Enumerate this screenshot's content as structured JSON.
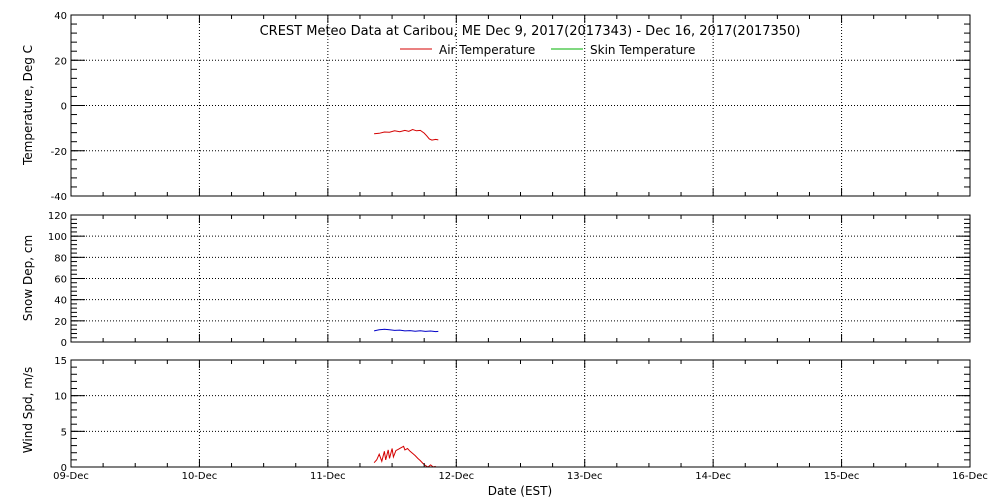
{
  "chart_data": {
    "type": "line",
    "title": "CREST Meteo Data at Caribou, ME   Dec  9, 2017(2017343) - Dec 16, 2017(2017350)",
    "xlabel": "Date (EST)",
    "x_ticks": [
      "09-Dec",
      "10-Dec",
      "11-Dec",
      "12-Dec",
      "13-Dec",
      "14-Dec",
      "15-Dec",
      "16-Dec"
    ],
    "xlim": [
      0,
      7
    ],
    "legend": [
      {
        "name": "Air Temperature",
        "color": "#d40000"
      },
      {
        "name": "Skin Temperature",
        "color": "#00b000"
      }
    ],
    "panels": [
      {
        "id": "temperature",
        "ylabel": "Temperature, Deg C",
        "ylim": [
          -40,
          40
        ],
        "y_ticks": [
          "40",
          "20",
          "0",
          "-20",
          "-40"
        ],
        "y_tick_values": [
          40,
          20,
          0,
          -20,
          -40
        ],
        "series": [
          {
            "name": "Air Temperature",
            "color": "#d40000",
            "x": [
              2.36,
              2.4,
              2.44,
              2.48,
              2.52,
              2.56,
              2.6,
              2.63,
              2.66,
              2.69,
              2.72,
              2.75,
              2.77,
              2.79,
              2.81,
              2.84,
              2.86
            ],
            "y": [
              -12.5,
              -12.3,
              -11.7,
              -11.8,
              -11.2,
              -11.6,
              -11.0,
              -11.4,
              -10.6,
              -11.2,
              -11.0,
              -12.2,
              -13.4,
              -14.8,
              -15.3,
              -15.0,
              -15.2
            ]
          },
          {
            "name": "Skin Temperature",
            "color": "#00b000",
            "x": [],
            "y": []
          }
        ]
      },
      {
        "id": "snow",
        "ylabel": "Snow Dep, cm",
        "ylim": [
          0,
          120
        ],
        "y_ticks": [
          "120",
          "100",
          "80",
          "60",
          "40",
          "20",
          "0"
        ],
        "y_tick_values": [
          120,
          100,
          80,
          60,
          40,
          20,
          0
        ],
        "series": [
          {
            "name": "Snow Depth",
            "color": "#0000c8",
            "x": [
              2.36,
              2.4,
              2.44,
              2.48,
              2.52,
              2.56,
              2.6,
              2.64,
              2.68,
              2.72,
              2.76,
              2.8,
              2.84,
              2.86
            ],
            "y": [
              10.5,
              11.5,
              12.0,
              11.5,
              11.0,
              11.2,
              10.5,
              10.8,
              10.2,
              10.6,
              10.0,
              10.4,
              9.8,
              10.0
            ]
          }
        ]
      },
      {
        "id": "wind",
        "ylabel": "Wind Spd, m/s",
        "ylim": [
          0,
          15
        ],
        "y_ticks": [
          "15",
          "10",
          "5",
          "0"
        ],
        "y_tick_values": [
          15,
          10,
          5,
          0
        ],
        "series": [
          {
            "name": "Wind Speed",
            "color": "#d40000",
            "x": [
              2.36,
              2.38,
              2.4,
              2.42,
              2.44,
              2.45,
              2.47,
              2.48,
              2.5,
              2.51,
              2.53,
              2.55,
              2.57,
              2.59,
              2.6,
              2.62,
              2.64,
              2.66,
              2.68,
              2.7,
              2.72,
              2.74,
              2.76,
              2.78,
              2.8,
              2.82,
              2.84
            ],
            "y": [
              0.6,
              1.0,
              1.8,
              0.8,
              2.2,
              1.0,
              2.4,
              1.2,
              2.6,
              1.4,
              2.3,
              2.5,
              2.7,
              2.9,
              2.4,
              2.6,
              2.2,
              1.9,
              1.6,
              1.2,
              0.9,
              0.5,
              0.2,
              0.0,
              0.3,
              0.0,
              0.1
            ]
          }
        ]
      }
    ]
  }
}
